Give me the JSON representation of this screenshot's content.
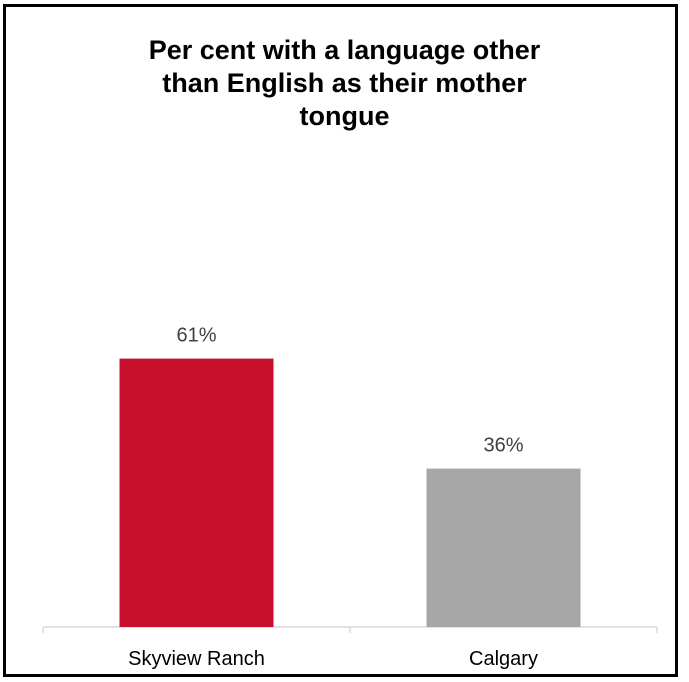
{
  "chart_data": {
    "type": "bar",
    "title_lines": [
      "Per cent with a language other",
      "than English as their mother",
      "tongue"
    ],
    "categories": [
      "Skyview Ranch",
      "Calgary"
    ],
    "values": [
      61,
      36
    ],
    "value_labels": [
      "61%",
      "36%"
    ],
    "bar_colors": [
      "#C8102E",
      "#A6A6A6"
    ],
    "ylim": [
      0,
      100
    ],
    "xlabel": "",
    "ylabel": "",
    "grid": false,
    "legend": "none"
  }
}
